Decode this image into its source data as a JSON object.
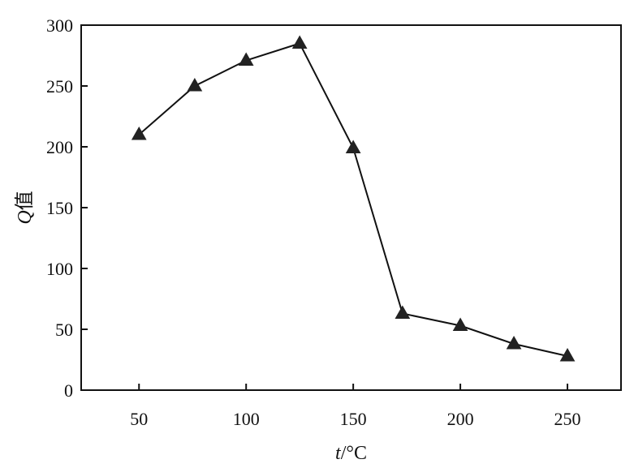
{
  "chart_data": {
    "type": "line",
    "title": "",
    "xlabel_var": "t",
    "xlabel_unit": "/°C",
    "ylabel_var": "Q",
    "ylabel_unit": "值",
    "xlim": [
      23,
      275
    ],
    "ylim": [
      0,
      300
    ],
    "xticks": [
      50,
      100,
      150,
      200,
      250
    ],
    "yticks": [
      0,
      50,
      100,
      150,
      200,
      250,
      300
    ],
    "grid": false,
    "marker": "triangle",
    "series": [
      {
        "x": [
          50,
          76,
          100,
          125,
          150,
          173,
          200,
          225,
          250
        ],
        "y": [
          210,
          250,
          271,
          285,
          199,
          63,
          53,
          38,
          28
        ]
      }
    ],
    "colors": {
      "line": "#111111",
      "marker": "#222222",
      "axis": "#111111"
    }
  }
}
